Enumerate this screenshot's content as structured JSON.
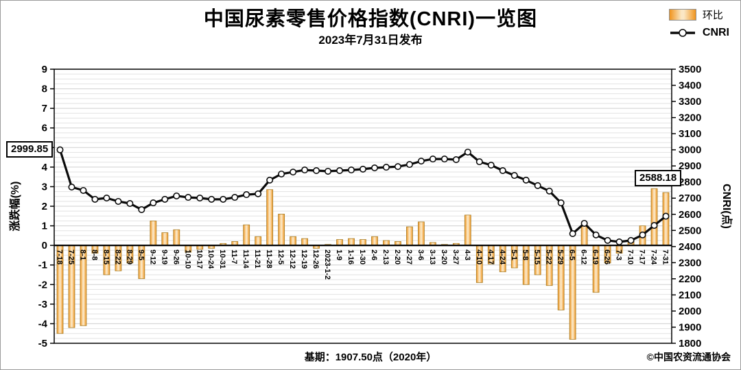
{
  "title": "中国尿素零售价格指数(CNRI)一览图",
  "subtitle": "2023年7月31日发布",
  "legend": {
    "bar": "环比",
    "line": "CNRI"
  },
  "left_axis_label": "涨跌幅(%)",
  "right_axis_label": "CNRI(点)",
  "annotations": {
    "first": "2999.85",
    "last": "2588.18"
  },
  "footer": {
    "base_period": "基期：1907.50点（2020年）",
    "copyright": "©中国农资流通协会"
  },
  "colors": {
    "bar_edge": "#F0941D",
    "bar_center": "#FBE7C4",
    "bar_outline": "#a87f2a",
    "line": "#0a0a0a",
    "marker_fill": "#ffffff",
    "grid_minor": "#e2e2e2",
    "grid_major": "#cfcfcf",
    "axis": "#000000"
  },
  "chart_data": {
    "type": "bar+line combo",
    "title": "中国尿素零售价格指数(CNRI)一览图",
    "categories": [
      "7-18",
      "7-25",
      "8-1",
      "8-8",
      "8-15",
      "8-22",
      "8-29",
      "9-5",
      "9-12",
      "9-19",
      "9-26",
      "10-10",
      "10-17",
      "10-24",
      "10-31",
      "11-7",
      "11-14",
      "11-21",
      "11-28",
      "12-5",
      "12-12",
      "12-19",
      "12-26",
      "2023-1-2",
      "1-9",
      "1-16",
      "1-30",
      "2-6",
      "2-13",
      "2-20",
      "2-27",
      "3-6",
      "3-13",
      "3-20",
      "3-27",
      "4-3",
      "4-10",
      "4-17",
      "4-24",
      "5-1",
      "5-8",
      "5-15",
      "5-22",
      "5-29",
      "6-5",
      "6-12",
      "6-19",
      "6-26",
      "7-3",
      "7-10",
      "7-17",
      "7-24",
      "7-31"
    ],
    "series": [
      {
        "name": "环比",
        "type": "bar",
        "axis": "left",
        "unit": "%",
        "values": [
          -4.5,
          -4.2,
          -4.1,
          -0.4,
          -1.5,
          -1.3,
          -0.9,
          -1.7,
          1.25,
          0.65,
          0.8,
          -0.35,
          -0.2,
          -0.15,
          0.1,
          0.2,
          1.05,
          0.45,
          2.85,
          1.6,
          0.45,
          0.35,
          -0.15,
          0.05,
          0.3,
          0.35,
          0.3,
          0.45,
          0.25,
          0.2,
          0.95,
          1.2,
          0.15,
          0.05,
          0.1,
          1.55,
          -1.9,
          -0.95,
          -1.35,
          -1.15,
          -2.0,
          -1.5,
          -2.05,
          -3.3,
          -4.8,
          1.05,
          -2.4,
          -0.9,
          -0.4,
          0.3,
          1.0,
          2.9,
          2.7
        ]
      },
      {
        "name": "CNRI",
        "type": "line",
        "axis": "right",
        "unit": "点",
        "values": [
          2999.85,
          2769,
          2748,
          2693,
          2701,
          2680,
          2667,
          2629,
          2671,
          2693,
          2714,
          2705,
          2701,
          2693,
          2693,
          2705,
          2722,
          2727,
          2812,
          2850,
          2862,
          2875,
          2871,
          2867,
          2871,
          2875,
          2880,
          2888,
          2892,
          2896,
          2909,
          2930,
          2943,
          2943,
          2939,
          2986,
          2926,
          2905,
          2871,
          2841,
          2812,
          2778,
          2744,
          2671,
          2480,
          2544,
          2472,
          2438,
          2429,
          2438,
          2472,
          2531,
          2588.18
        ]
      }
    ],
    "left_axis": {
      "label": "涨跌幅(%)",
      "min": -5,
      "max": 9,
      "step": 1
    },
    "right_axis": {
      "label": "CNRI(点)",
      "min": 1800,
      "max": 3500,
      "step": 100
    },
    "grid": "horizontal stripes",
    "legend_position": "top-right",
    "first_point_label": 2999.85,
    "last_point_label": 2588.18
  }
}
